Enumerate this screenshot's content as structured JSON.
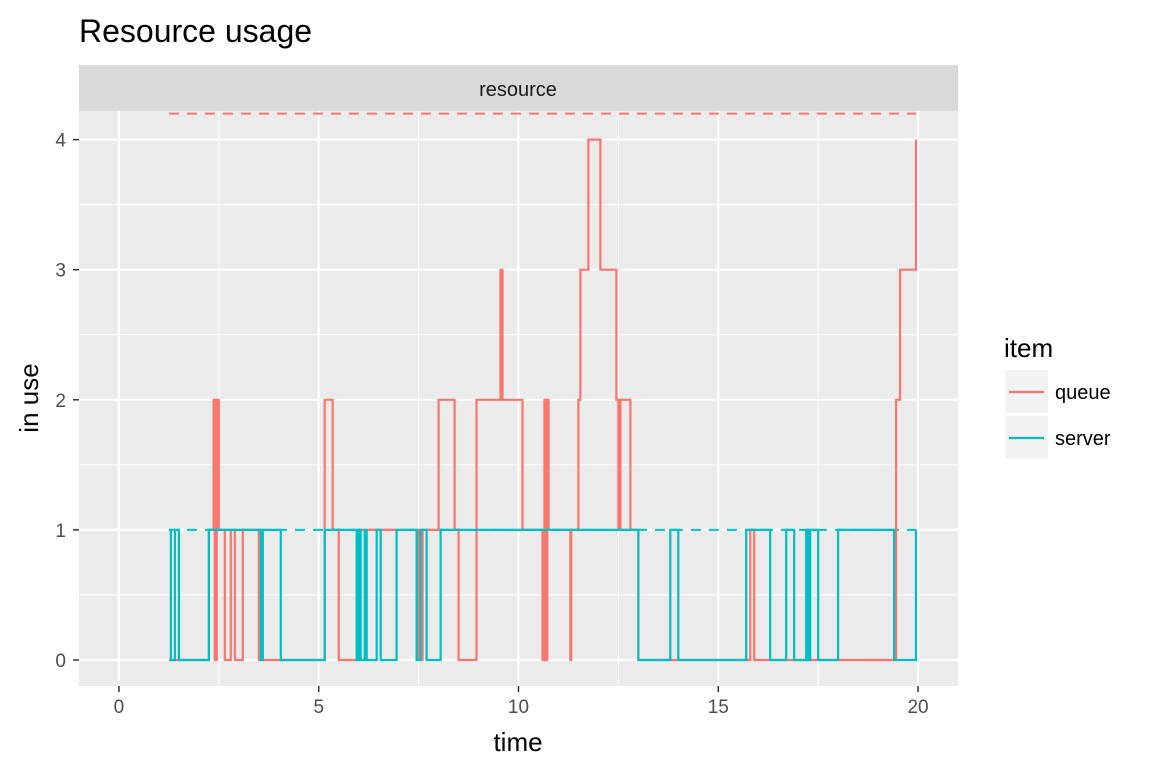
{
  "chart_data": {
    "type": "line",
    "title": "Resource usage",
    "facet_label": "resource",
    "xlabel": "time",
    "ylabel": "in use",
    "xlim": [
      -1,
      21
    ],
    "ylim": [
      -0.2,
      4.22
    ],
    "x_ticks": [
      0,
      5,
      10,
      15,
      20
    ],
    "y_ticks": [
      0,
      1,
      2,
      3,
      4
    ],
    "x_minor": [
      2.5,
      7.5,
      12.5,
      17.5
    ],
    "y_minor": [
      0.5,
      1.5,
      2.5,
      3.5
    ],
    "grid": true,
    "legend": {
      "title": "item",
      "position": "right",
      "entries": [
        "queue",
        "server"
      ]
    },
    "colors": {
      "queue": "#F8766D",
      "server": "#00BFC4",
      "panel_bg": "#EBEBEB",
      "strip_bg": "#D9D9D9",
      "grid": "#FFFFFF"
    },
    "limits": [
      {
        "item": "queue",
        "x": [
          1.25,
          19.95
        ],
        "y": 4.2
      },
      {
        "item": "server",
        "x": [
          1.25,
          19.95
        ],
        "y": 1
      }
    ],
    "series": [
      {
        "name": "queue",
        "x": [
          1.25,
          2.25,
          2.37,
          2.4,
          2.45,
          2.5,
          2.65,
          2.8,
          2.9,
          3.1,
          3.5,
          5.15,
          5.35,
          5.5,
          6.0,
          7.5,
          7.6,
          8.0,
          8.4,
          8.5,
          8.95,
          9.55,
          9.6,
          10.1,
          10.6,
          10.65,
          10.7,
          10.72,
          10.75,
          10.8,
          11.3,
          11.32,
          11.5,
          11.55,
          11.6,
          11.65,
          11.75,
          12.0,
          12.05,
          12.45,
          12.5,
          12.55,
          12.8,
          13.0,
          14.9,
          15.8,
          15.9,
          16.3,
          16.5,
          19.4,
          19.45,
          19.55,
          19.95
        ],
        "y": [
          0,
          1,
          2,
          0,
          2,
          1,
          0,
          1,
          0,
          1,
          0,
          2,
          1,
          0,
          1,
          0,
          1,
          2,
          1,
          0,
          2,
          3,
          2,
          1,
          0,
          2,
          0,
          2,
          1,
          1,
          0,
          1,
          2,
          3,
          3,
          3,
          4,
          4,
          3,
          2,
          1,
          2,
          1,
          0,
          0,
          1,
          0,
          0,
          0,
          0,
          2,
          3,
          4
        ]
      },
      {
        "name": "server",
        "x": [
          1.25,
          1.3,
          1.4,
          1.5,
          2.25,
          3.5,
          3.55,
          3.6,
          3.7,
          4.05,
          5.15,
          5.95,
          6.0,
          6.05,
          6.15,
          6.2,
          6.45,
          6.55,
          6.95,
          7.45,
          7.55,
          7.7,
          8.05,
          12.9,
          13.0,
          13.8,
          14.0,
          14.55,
          15.7,
          15.8,
          16.3,
          16.7,
          16.9,
          17.2,
          17.25,
          17.3,
          17.5,
          18.0,
          19.4,
          19.95
        ],
        "y": [
          1,
          0,
          1,
          0,
          1,
          1,
          0,
          1,
          1,
          0,
          1,
          0,
          1,
          0,
          1,
          0,
          1,
          0,
          1,
          0,
          1,
          0,
          1,
          1,
          0,
          1,
          0,
          0,
          1,
          1,
          0,
          1,
          0,
          1,
          0,
          1,
          0,
          1,
          0,
          1
        ]
      }
    ]
  }
}
